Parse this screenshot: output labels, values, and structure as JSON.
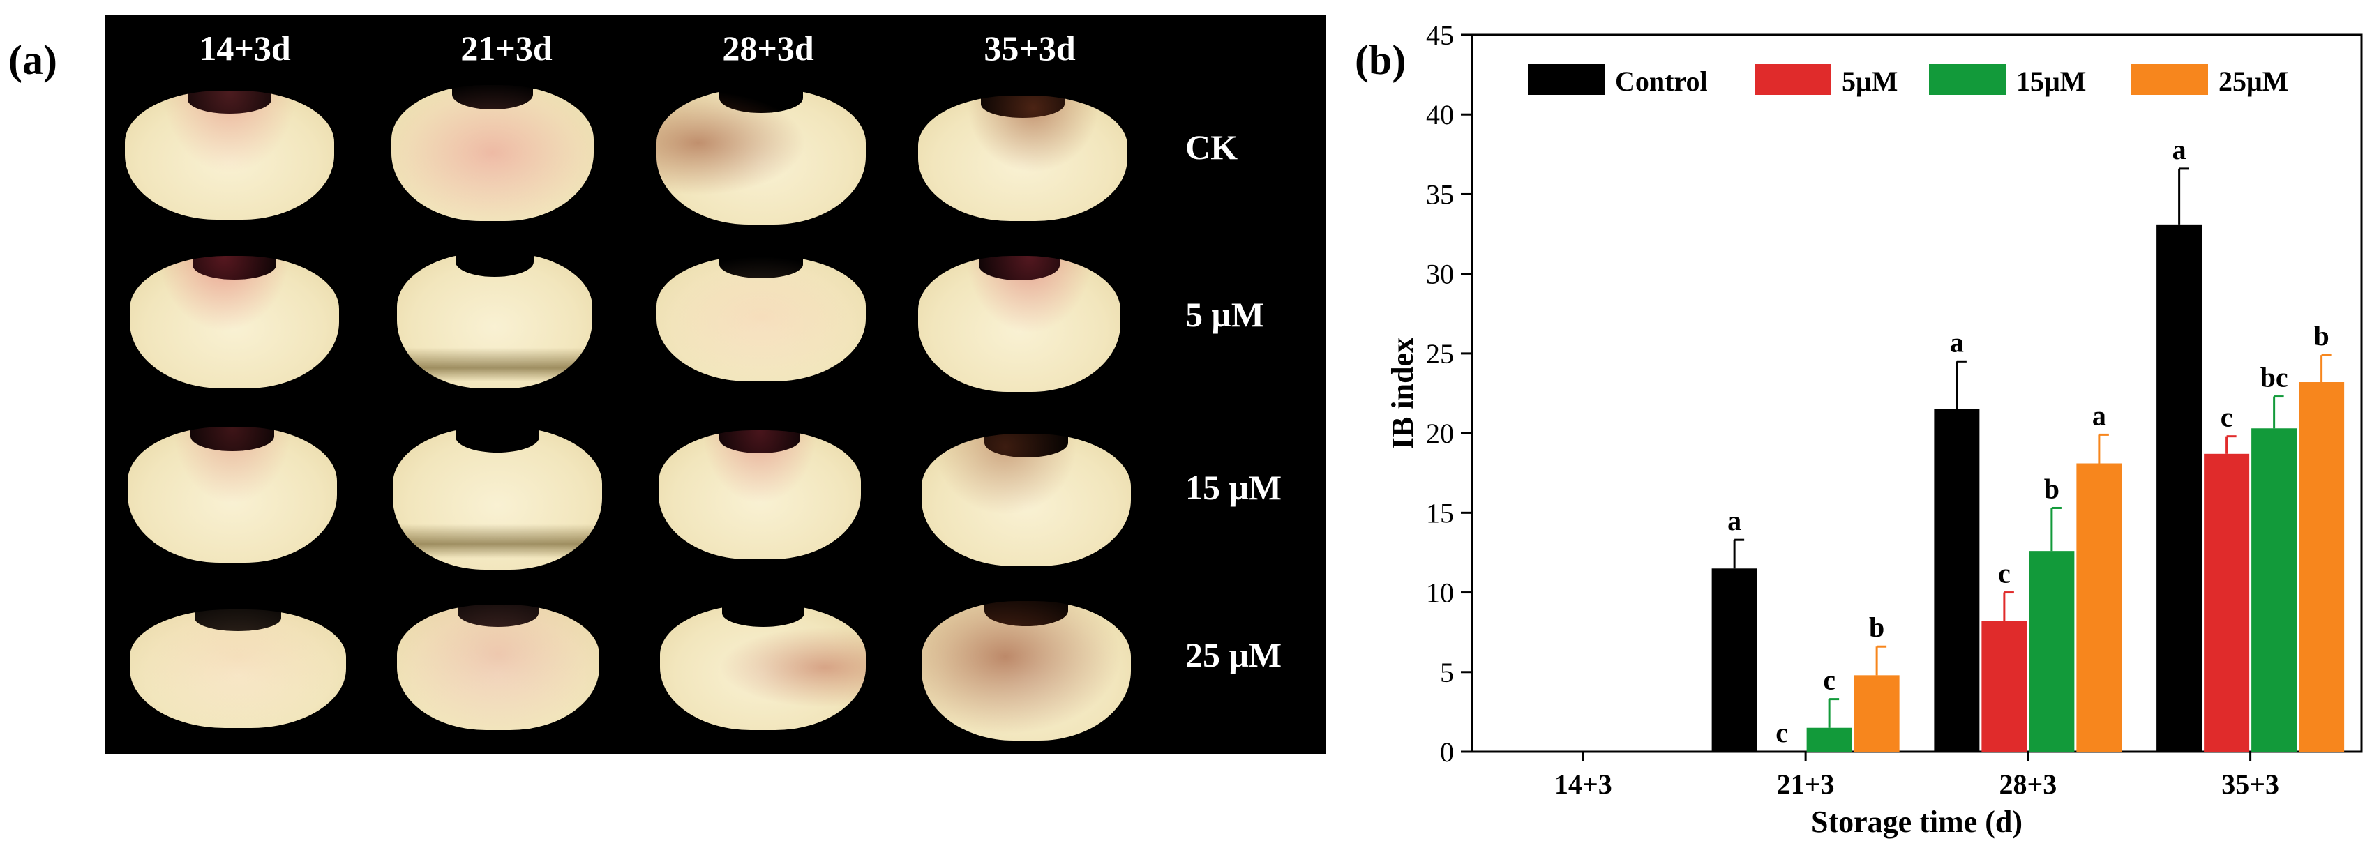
{
  "panel_a": {
    "label": "(a)",
    "columns": [
      "14+3d",
      "21+3d",
      "28+3d",
      "35+3d"
    ],
    "rows": [
      "CK",
      "5 μM",
      "15 μM",
      "25 μM"
    ]
  },
  "panel_b": {
    "label": "(b)"
  },
  "colors": {
    "control": "#000000",
    "5uM": "#e02b2b",
    "15uM": "#129a3a",
    "25uM": "#f7861d"
  },
  "chart_data": {
    "type": "bar",
    "xlabel": "Storage time (d)",
    "ylabel": "IB index",
    "ylim": [
      0,
      45
    ],
    "yticks": [
      0,
      5,
      10,
      15,
      20,
      25,
      30,
      35,
      40,
      45
    ],
    "categories": [
      "14+3",
      "21+3",
      "28+3",
      "35+3"
    ],
    "legend_position": "top",
    "grid": false,
    "series": [
      {
        "name": "Control",
        "values": [
          0,
          11.5,
          21.5,
          33.1
        ],
        "errors": [
          0,
          1.8,
          3.0,
          3.5
        ],
        "letters": [
          "",
          "a",
          "a",
          "a"
        ]
      },
      {
        "name": "5μM",
        "values": [
          0,
          0,
          8.2,
          18.7
        ],
        "errors": [
          0,
          0,
          1.8,
          1.1
        ],
        "letters": [
          "",
          "c",
          "c",
          "c"
        ]
      },
      {
        "name": "15μM",
        "values": [
          0,
          1.5,
          12.6,
          20.3
        ],
        "errors": [
          0,
          1.8,
          2.7,
          2.0
        ],
        "letters": [
          "",
          "c",
          "b",
          "bc"
        ]
      },
      {
        "name": "25μM",
        "values": [
          0,
          4.8,
          18.1,
          23.2
        ],
        "errors": [
          0,
          1.8,
          1.8,
          1.7
        ],
        "letters": [
          "",
          "b",
          "a",
          "b"
        ]
      }
    ]
  }
}
